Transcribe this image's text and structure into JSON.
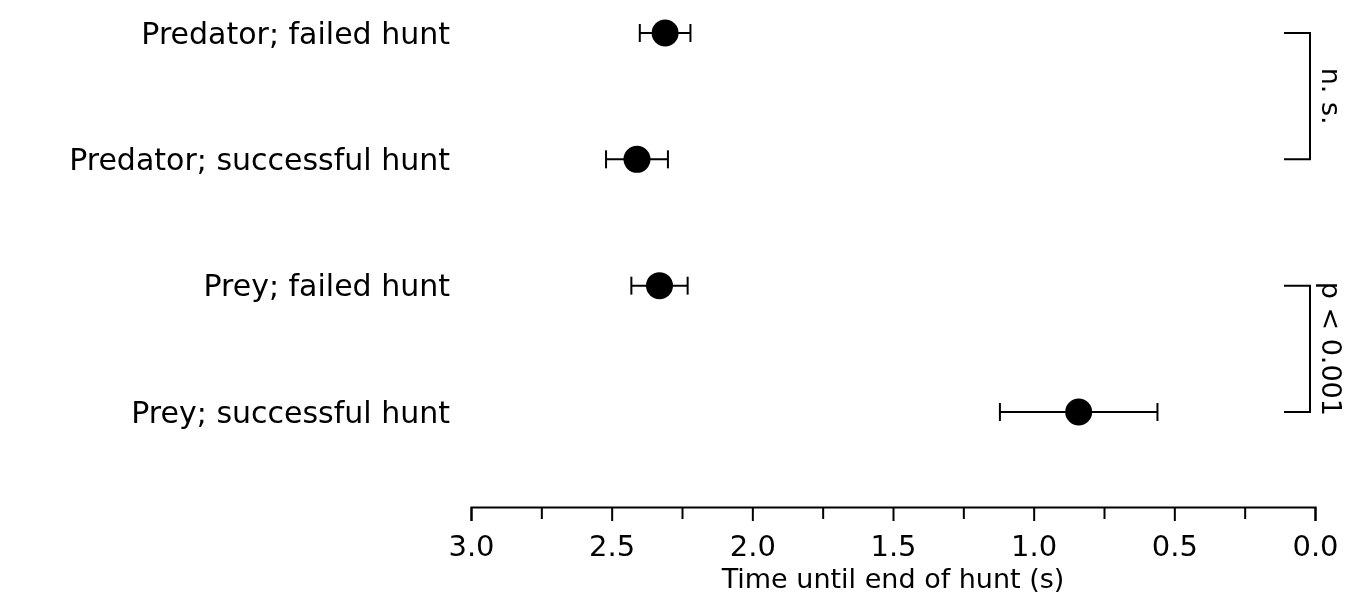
{
  "chart_data": {
    "type": "scatter",
    "orientation": "horizontal",
    "xlabel": "Time until end of hunt (s)",
    "categories": [
      "Predator; failed hunt",
      "Predator; successful hunt",
      "Prey; failed hunt",
      "Prey; successful hunt"
    ],
    "values": [
      2.31,
      2.41,
      2.33,
      0.84
    ],
    "errors": [
      0.09,
      0.11,
      0.1,
      0.28
    ],
    "color": "#000000",
    "marker": "circle",
    "grid": false,
    "xlim": [
      3.0,
      0.0
    ],
    "xticks": [
      {
        "value": 3.0,
        "label": "3.0"
      },
      {
        "value": 2.75,
        "label": null
      },
      {
        "value": 2.5,
        "label": "2.5"
      },
      {
        "value": 2.25,
        "label": null
      },
      {
        "value": 2.0,
        "label": "2.0"
      },
      {
        "value": 1.75,
        "label": null
      },
      {
        "value": 1.5,
        "label": "1.5"
      },
      {
        "value": 1.25,
        "label": null
      },
      {
        "value": 1.0,
        "label": "1.0"
      },
      {
        "value": 0.75,
        "label": null
      },
      {
        "value": 0.5,
        "label": "0.5"
      },
      {
        "value": 0.25,
        "label": null
      },
      {
        "value": 0.0,
        "label": "0.0"
      }
    ],
    "annotations": [
      "n. s.",
      "p < 0.001"
    ]
  }
}
